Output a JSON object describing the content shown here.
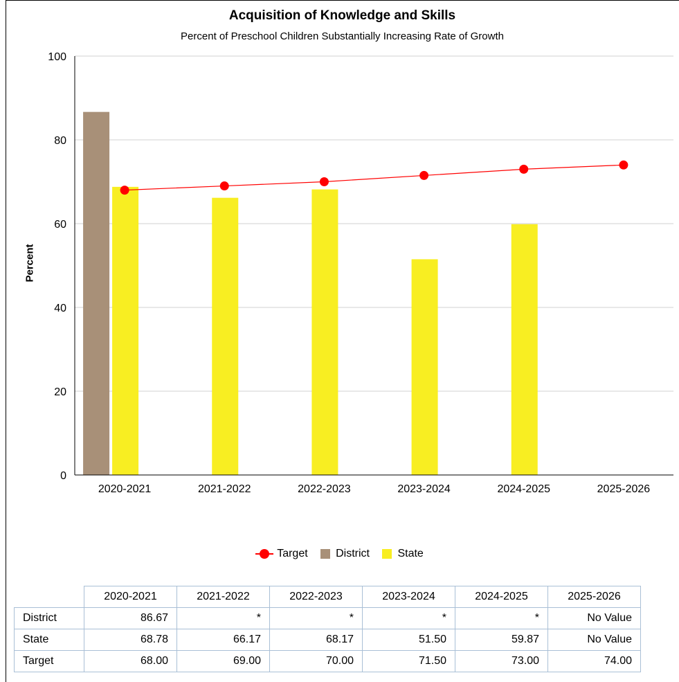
{
  "chart_data": {
    "type": "bar",
    "title": "Acquisition of Knowledge and Skills",
    "subtitle": "Percent of Preschool Children Substantially Increasing Rate of Growth",
    "xlabel": "",
    "ylabel": "Percent",
    "ylim": [
      0,
      100
    ],
    "yticks": [
      0,
      20,
      40,
      60,
      80,
      100
    ],
    "grid": true,
    "legend_position": "bottom",
    "categories": [
      "2020-2021",
      "2021-2022",
      "2022-2023",
      "2023-2024",
      "2024-2025",
      "2025-2026"
    ],
    "series": [
      {
        "name": "District",
        "type": "bar",
        "color": "#a89078",
        "values": [
          86.67,
          null,
          null,
          null,
          null,
          null
        ]
      },
      {
        "name": "State",
        "type": "bar",
        "color": "#f8ee22",
        "values": [
          68.78,
          66.17,
          68.17,
          51.5,
          59.87,
          null
        ]
      },
      {
        "name": "Target",
        "type": "line",
        "color": "#ff0000",
        "values": [
          68.0,
          69.0,
          70.0,
          71.5,
          73.0,
          74.0
        ]
      }
    ],
    "legend": [
      "Target",
      "District",
      "State"
    ]
  },
  "table": {
    "columns": [
      "2020-2021",
      "2021-2022",
      "2022-2023",
      "2023-2024",
      "2024-2025",
      "2025-2026"
    ],
    "rows": [
      {
        "label": "District",
        "cells": [
          "86.67",
          "*",
          "*",
          "*",
          "*",
          "No Value"
        ]
      },
      {
        "label": "State",
        "cells": [
          "68.78",
          "66.17",
          "68.17",
          "51.50",
          "59.87",
          "No Value"
        ]
      },
      {
        "label": "Target",
        "cells": [
          "68.00",
          "69.00",
          "70.00",
          "71.50",
          "73.00",
          "74.00"
        ]
      }
    ]
  }
}
